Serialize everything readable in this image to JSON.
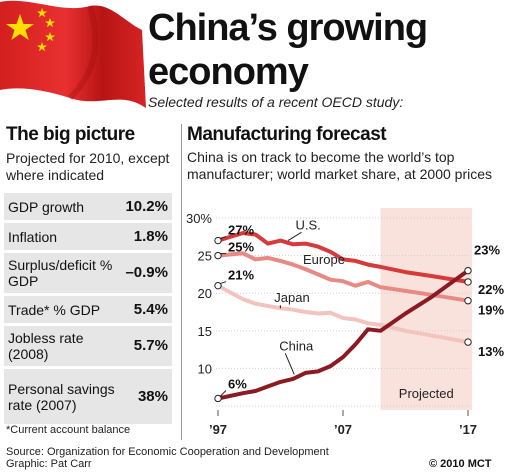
{
  "header": {
    "title_line1": "China’s growing",
    "title_line2": "economy",
    "subtitle": "Selected results of a recent OECD study:"
  },
  "big_picture": {
    "heading": "The big picture",
    "subheading": "Projected for 2010, except where indicated",
    "rows": [
      {
        "label": "GDP growth",
        "value": "10.2%"
      },
      {
        "label": "Inflation",
        "value": "1.8%"
      },
      {
        "label": "Surplus/deficit % GDP",
        "value": "–0.9%"
      },
      {
        "label": "Trade* % GDP",
        "value": "5.4%"
      },
      {
        "label": "Jobless rate (2008)",
        "value": "5.7%"
      },
      {
        "label": "Personal savings rate (2007)",
        "value": "38%"
      }
    ],
    "footnote": "*Current account balance"
  },
  "forecast": {
    "heading": "Manufacturing forecast",
    "description": "China is on track to become the world’s top manufacturer; world market share, at 2000 prices"
  },
  "colors": {
    "us": "#d63a3a",
    "europe": "#e88a84",
    "japan": "#f2c4bd",
    "china": "#8c1a22",
    "projected_band": "#f9e2dc",
    "table_bg": "#e6e6e6"
  },
  "chart_data": {
    "type": "line",
    "x_range": [
      1997,
      2017
    ],
    "ylim": [
      5,
      30
    ],
    "yticks": [
      5,
      10,
      15,
      20,
      25,
      30
    ],
    "ytick_labels": [
      "",
      "10",
      "15",
      "20",
      "25",
      "30%"
    ],
    "xtick_labels": [
      {
        "x": 1997,
        "label": "’97"
      },
      {
        "x": 2007,
        "label": "’07"
      },
      {
        "x": 2017,
        "label": "’17"
      }
    ],
    "projected_start": 2010,
    "projected_label": "Projected",
    "series": [
      {
        "name": "U.S.",
        "color_key": "us",
        "x": [
          1997,
          1999,
          2000,
          2001,
          2002,
          2003,
          2004,
          2005,
          2006,
          2007,
          2008,
          2009,
          2010,
          2012,
          2014,
          2017
        ],
        "y": [
          27,
          28,
          27.8,
          26.6,
          27,
          26.5,
          26.6,
          26.2,
          25.5,
          24.5,
          24.3,
          23.8,
          23.5,
          22.8,
          22.3,
          21.5
        ],
        "start_label": "27%",
        "end_label": "22%"
      },
      {
        "name": "Europe",
        "color_key": "europe",
        "x": [
          1997,
          1999,
          2000,
          2001,
          2002,
          2003,
          2004,
          2005,
          2006,
          2007,
          2008,
          2009,
          2010,
          2012,
          2014,
          2017
        ],
        "y": [
          25,
          25.3,
          24.5,
          24.7,
          24.3,
          23.8,
          23.2,
          22.5,
          21.8,
          21.6,
          21.0,
          21.5,
          20.8,
          20.3,
          19.8,
          19
        ],
        "start_label": "25%",
        "end_label": "19%"
      },
      {
        "name": "Japan",
        "color_key": "japan",
        "x": [
          1997,
          1999,
          2000,
          2001,
          2002,
          2003,
          2004,
          2005,
          2006,
          2007,
          2008,
          2009,
          2010,
          2012,
          2014,
          2017
        ],
        "y": [
          21,
          19.2,
          18.6,
          18.3,
          18.0,
          17.8,
          17.5,
          17.3,
          17.4,
          16.7,
          16.5,
          16.0,
          15.8,
          15.0,
          14.4,
          13.5
        ],
        "start_label": "21%",
        "end_label": "13%"
      },
      {
        "name": "China",
        "color_key": "china",
        "x": [
          1997,
          1999,
          2000,
          2001,
          2002,
          2003,
          2004,
          2005,
          2006,
          2007,
          2008,
          2009,
          2010,
          2012,
          2014,
          2017
        ],
        "y": [
          6,
          6.7,
          7,
          7.6,
          8.2,
          8.6,
          9.4,
          9.6,
          10.3,
          11.5,
          13.2,
          15.2,
          15.0,
          17.3,
          19.4,
          23
        ],
        "start_label": "6%",
        "end_label": "23%"
      }
    ]
  },
  "footer": {
    "source": "Source: Organization for Economic Cooperation and Development",
    "graphic": "Graphic: Pat Carr",
    "copyright": "© 2010 MCT"
  }
}
